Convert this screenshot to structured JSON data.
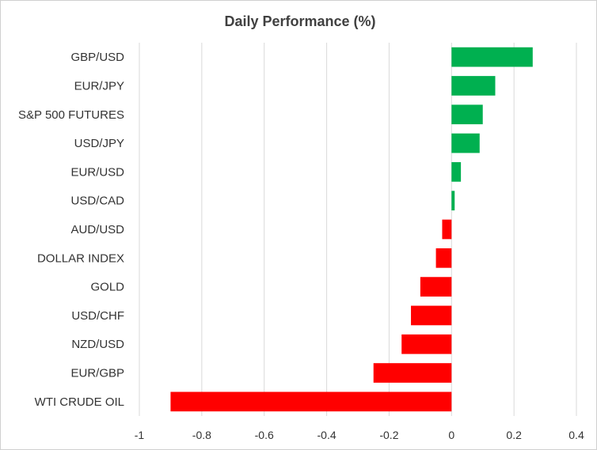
{
  "chart_data": {
    "type": "bar",
    "orientation": "horizontal",
    "title": "Daily Performance (%)",
    "xlabel": "",
    "ylabel": "",
    "categories": [
      "GBP/USD",
      "EUR/JPY",
      "S&P 500 FUTURES",
      "USD/JPY",
      "EUR/USD",
      "USD/CAD",
      "AUD/USD",
      "DOLLAR INDEX",
      "GOLD",
      "USD/CHF",
      "NZD/USD",
      "EUR/GBP",
      "WTI CRUDE OIL"
    ],
    "values": [
      0.26,
      0.14,
      0.1,
      0.09,
      0.03,
      0.01,
      -0.03,
      -0.05,
      -0.1,
      -0.13,
      -0.16,
      -0.25,
      -0.9
    ],
    "xlim": [
      -1,
      0.4
    ],
    "xticks": [
      "-1",
      "-0.8",
      "-0.6",
      "-0.4",
      "-0.2",
      "0",
      "0.2",
      "0.4"
    ],
    "grid": "vertical",
    "legend": "none",
    "colors": {
      "positive": "#00b050",
      "negative": "#ff0000",
      "grid": "#d9d9d9"
    }
  }
}
